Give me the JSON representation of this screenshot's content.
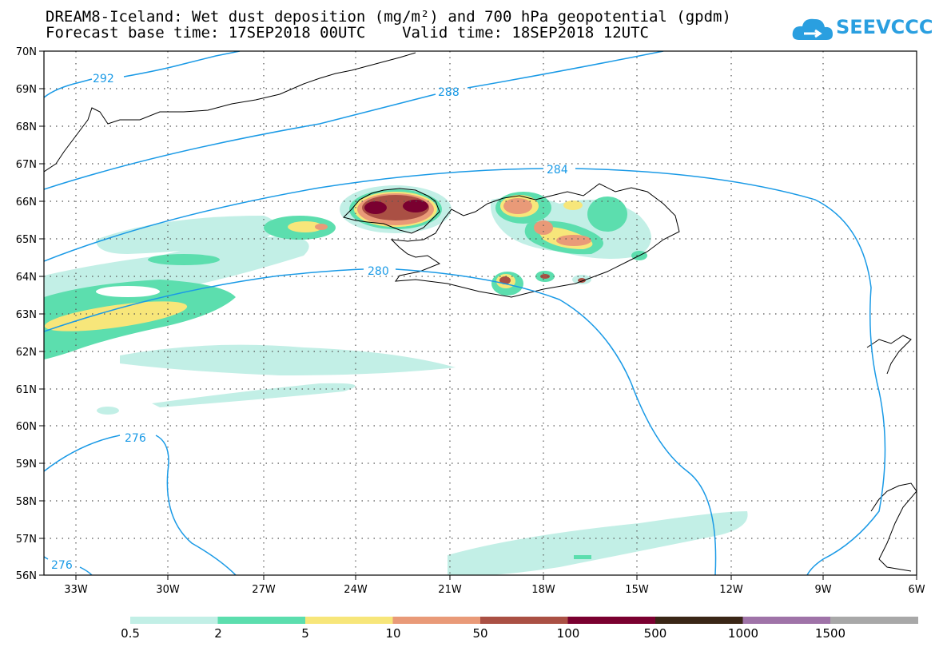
{
  "title_line1": "DREAM8-Iceland: Wet dust deposition (mg/m²) and 700 hPa geopotential (gpdm)",
  "title_line2": "Forecast base time: 17SEP2018 00UTC    Valid time: 18SEP2018 12UTC",
  "logo_text": "SEEVCCC",
  "lat_labels": [
    "70N",
    "69N",
    "68N",
    "67N",
    "66N",
    "65N",
    "64N",
    "63N",
    "62N",
    "61N",
    "60N",
    "59N",
    "58N",
    "57N",
    "56N"
  ],
  "lon_labels": [
    "33W",
    "30W",
    "27W",
    "24W",
    "21W",
    "18W",
    "15W",
    "12W",
    "9W",
    "6W"
  ],
  "contour_labels": [
    "292",
    "288",
    "284",
    "280",
    "276",
    "276"
  ],
  "colorbar": {
    "labels": [
      "0.5",
      "2",
      "5",
      "10",
      "50",
      "100",
      "500",
      "1000",
      "1500"
    ],
    "colors": [
      "#c2efe6",
      "#5cdeae",
      "#f7e67a",
      "#e99a78",
      "#aa5044",
      "#7a0030",
      "#3a2616",
      "#9f73a8",
      "#a8a8a8"
    ]
  },
  "colors": {
    "contour": "#1a9ae6",
    "coastline": "#000000"
  }
}
